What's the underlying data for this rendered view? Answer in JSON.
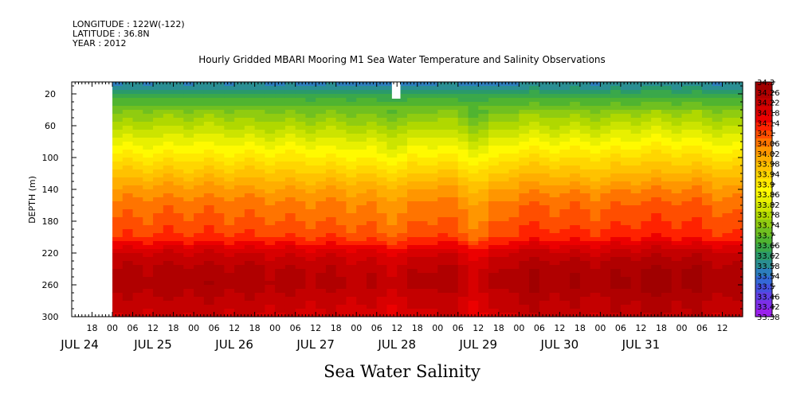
{
  "header": {
    "longitude": "LONGITUDE : 122W(-122)",
    "latitude": "LATITUDE : 36.8N",
    "year": "YEAR : 2012"
  },
  "chart_data": {
    "type": "heatmap",
    "title": "Hourly Gridded MBARI Mooring M1 Sea Water Temperature and Salinity Observations",
    "xlabel": "Sea Water Salinity",
    "ylabel": "DEPTH (m)",
    "ylim": [
      300,
      5
    ],
    "yticks": [
      20,
      60,
      100,
      140,
      180,
      220,
      260,
      300
    ],
    "x_range_hours": [
      -12,
      186
    ],
    "data_start_hour": 0,
    "x_hour_ticks": [
      {
        "h": -6,
        "label": "18"
      },
      {
        "h": 0,
        "label": "00"
      },
      {
        "h": 6,
        "label": "06"
      },
      {
        "h": 12,
        "label": "12"
      },
      {
        "h": 18,
        "label": "18"
      },
      {
        "h": 24,
        "label": "00"
      },
      {
        "h": 30,
        "label": "06"
      },
      {
        "h": 36,
        "label": "12"
      },
      {
        "h": 42,
        "label": "18"
      },
      {
        "h": 48,
        "label": "00"
      },
      {
        "h": 54,
        "label": "06"
      },
      {
        "h": 60,
        "label": "12"
      },
      {
        "h": 66,
        "label": "18"
      },
      {
        "h": 72,
        "label": "00"
      },
      {
        "h": 78,
        "label": "06"
      },
      {
        "h": 84,
        "label": "12"
      },
      {
        "h": 90,
        "label": "18"
      },
      {
        "h": 96,
        "label": "00"
      },
      {
        "h": 102,
        "label": "06"
      },
      {
        "h": 108,
        "label": "12"
      },
      {
        "h": 114,
        "label": "18"
      },
      {
        "h": 120,
        "label": "00"
      },
      {
        "h": 126,
        "label": "06"
      },
      {
        "h": 132,
        "label": "12"
      },
      {
        "h": 138,
        "label": "18"
      },
      {
        "h": 144,
        "label": "00"
      },
      {
        "h": 150,
        "label": "06"
      },
      {
        "h": 156,
        "label": "12"
      },
      {
        "h": 162,
        "label": "18"
      },
      {
        "h": 168,
        "label": "00"
      },
      {
        "h": 174,
        "label": "06"
      },
      {
        "h": 180,
        "label": "12"
      }
    ],
    "x_day_labels": [
      {
        "h": -12,
        "label": "JUL 24"
      },
      {
        "h": 12,
        "label": "JUL 25"
      },
      {
        "h": 36,
        "label": "JUL 26"
      },
      {
        "h": 60,
        "label": "JUL 27"
      },
      {
        "h": 84,
        "label": "JUL 28"
      },
      {
        "h": 108,
        "label": "JUL 29"
      },
      {
        "h": 132,
        "label": "JUL 30"
      },
      {
        "h": 156,
        "label": "JUL 31"
      }
    ],
    "missing_blocks": [
      {
        "h0": -12,
        "h1": 0,
        "d0": 5,
        "d1": 300
      },
      {
        "h0": 82.5,
        "h1": 85,
        "d0": 5,
        "d1": 26
      }
    ],
    "depth_profile": [
      {
        "depth": 5,
        "salinity": 33.56
      },
      {
        "depth": 10,
        "salinity": 33.58
      },
      {
        "depth": 20,
        "salinity": 33.64
      },
      {
        "depth": 40,
        "salinity": 33.72
      },
      {
        "depth": 60,
        "salinity": 33.78
      },
      {
        "depth": 80,
        "salinity": 33.84
      },
      {
        "depth": 100,
        "salinity": 33.9
      },
      {
        "depth": 120,
        "salinity": 33.96
      },
      {
        "depth": 140,
        "salinity": 34.02
      },
      {
        "depth": 160,
        "salinity": 34.06
      },
      {
        "depth": 180,
        "salinity": 34.08
      },
      {
        "depth": 200,
        "salinity": 34.11
      },
      {
        "depth": 220,
        "salinity": 34.2
      },
      {
        "depth": 240,
        "salinity": 34.24
      },
      {
        "depth": 260,
        "salinity": 34.25
      },
      {
        "depth": 280,
        "salinity": 34.22
      },
      {
        "depth": 300,
        "salinity": 34.2
      }
    ],
    "daily_anomaly": [
      {
        "h": 0,
        "anomaly": 0.0
      },
      {
        "h": 24,
        "anomaly": 0.01
      },
      {
        "h": 48,
        "anomaly": 0.0
      },
      {
        "h": 72,
        "anomaly": -0.01
      },
      {
        "h": 84,
        "anomaly": -0.03
      },
      {
        "h": 96,
        "anomaly": 0.01
      },
      {
        "h": 108,
        "anomaly": -0.04
      },
      {
        "h": 120,
        "anomaly": 0.02
      },
      {
        "h": 144,
        "anomaly": 0.01
      },
      {
        "h": 156,
        "anomaly": 0.03
      },
      {
        "h": 168,
        "anomaly": 0.03
      },
      {
        "h": 186,
        "anomaly": 0.0
      }
    ],
    "colorbar": {
      "min": 33.38,
      "max": 34.3,
      "labels": [
        "34.3",
        "34.26",
        "34.22",
        "34.18",
        "34.14",
        "34.1",
        "34.06",
        "34.02",
        "33.98",
        "33.94",
        "33.9",
        "33.86",
        "33.82",
        "33.78",
        "33.74",
        "33.7",
        "33.66",
        "33.62",
        "33.58",
        "33.54",
        "33.5",
        "33.46",
        "33.42",
        "33.38"
      ],
      "colors_top_to_bottom": [
        "#a00000",
        "#b00000",
        "#c40000",
        "#d80000",
        "#ec0000",
        "#ff2200",
        "#ff4e00",
        "#ff7400",
        "#ff9600",
        "#ffae00",
        "#ffc200",
        "#ffd600",
        "#ffe800",
        "#fffa00",
        "#e8f000",
        "#cce400",
        "#b0d800",
        "#90cc10",
        "#70c020",
        "#50b430",
        "#3aa84a",
        "#2a9a6a",
        "#2a8e92",
        "#2c7ebe",
        "#3468d8",
        "#4650e0",
        "#6040e4",
        "#7c2ee8",
        "#9a20ec"
      ]
    },
    "grid": false,
    "legend": "colorbar-right"
  }
}
